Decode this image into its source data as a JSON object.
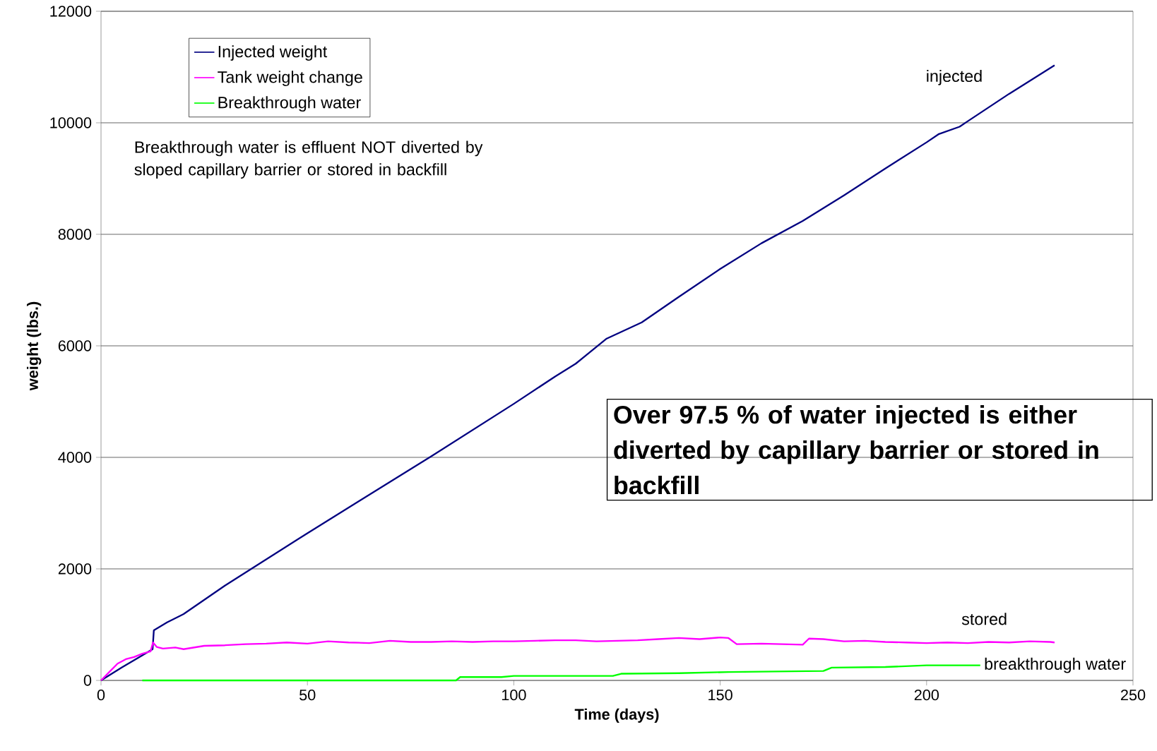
{
  "chart_data": {
    "type": "line",
    "xlabel": "Time (days)",
    "ylabel": "weight (lbs.)",
    "xlim": [
      0,
      250
    ],
    "xticks": [
      0,
      50,
      100,
      150,
      200,
      250
    ],
    "ylim": [
      0,
      12000
    ],
    "yticks": [
      0,
      2000,
      4000,
      6000,
      8000,
      10000,
      12000
    ],
    "grid": "y",
    "legend": "top left",
    "series": [
      {
        "name": "Injected weight",
        "color": "#000080",
        "x": [
          0,
          5,
          10,
          12.5,
          12.8,
          16,
          20,
          30,
          40,
          50,
          60,
          70,
          80,
          90,
          100,
          110,
          115,
          122.5,
          131,
          140,
          150,
          160,
          170,
          180,
          190,
          200,
          203,
          208,
          210,
          220,
          231
        ],
        "values": [
          0,
          230,
          450,
          560,
          900,
          1040,
          1190,
          1700,
          2170,
          2640,
          3100,
          3560,
          4020,
          4490,
          4960,
          5450,
          5680,
          6130,
          6420,
          6880,
          7380,
          7840,
          8240,
          8700,
          9180,
          9650,
          9800,
          9930,
          10030,
          10520,
          11030
        ]
      },
      {
        "name": "Tank weight change",
        "color": "#ff00ff",
        "x": [
          0,
          2,
          4,
          6,
          8,
          10,
          12,
          12.6,
          13.5,
          15,
          18,
          20,
          25,
          30,
          35,
          40,
          45,
          50,
          55,
          60,
          65,
          70,
          75,
          80,
          85,
          90,
          95,
          100,
          105,
          110,
          115,
          120,
          125,
          130,
          135,
          140,
          145,
          150,
          152,
          154,
          160,
          165,
          170,
          171.5,
          175,
          180,
          185,
          190,
          195,
          200,
          205,
          210,
          215,
          220,
          225,
          230,
          231
        ],
        "values": [
          0,
          150,
          300,
          380,
          420,
          480,
          520,
          680,
          600,
          570,
          590,
          560,
          620,
          630,
          650,
          660,
          680,
          660,
          700,
          680,
          670,
          710,
          690,
          690,
          700,
          690,
          700,
          700,
          710,
          720,
          720,
          700,
          710,
          720,
          740,
          760,
          740,
          770,
          760,
          650,
          660,
          650,
          640,
          750,
          740,
          700,
          710,
          690,
          680,
          670,
          680,
          670,
          690,
          680,
          700,
          690,
          680
        ]
      },
      {
        "name": "Breakthrough water",
        "color": "#00ff00",
        "x": [
          10,
          86,
          87,
          97,
          100,
          124,
          126,
          140,
          152,
          163,
          175,
          177,
          190,
          200,
          213
        ],
        "values": [
          0,
          0,
          60,
          60,
          80,
          80,
          120,
          130,
          150,
          160,
          170,
          230,
          240,
          270,
          270
        ]
      }
    ],
    "annotations": [
      "Breakthrough water is effluent NOT diverted by sloped capillary barrier or stored in backfill",
      "Over 97.5 % of water injected is either diverted by capillary barrier or stored in backfill",
      "injected",
      "stored",
      {
        "text": "breakthrough water",
        "x": 213,
        "y": 270
      }
    ]
  }
}
